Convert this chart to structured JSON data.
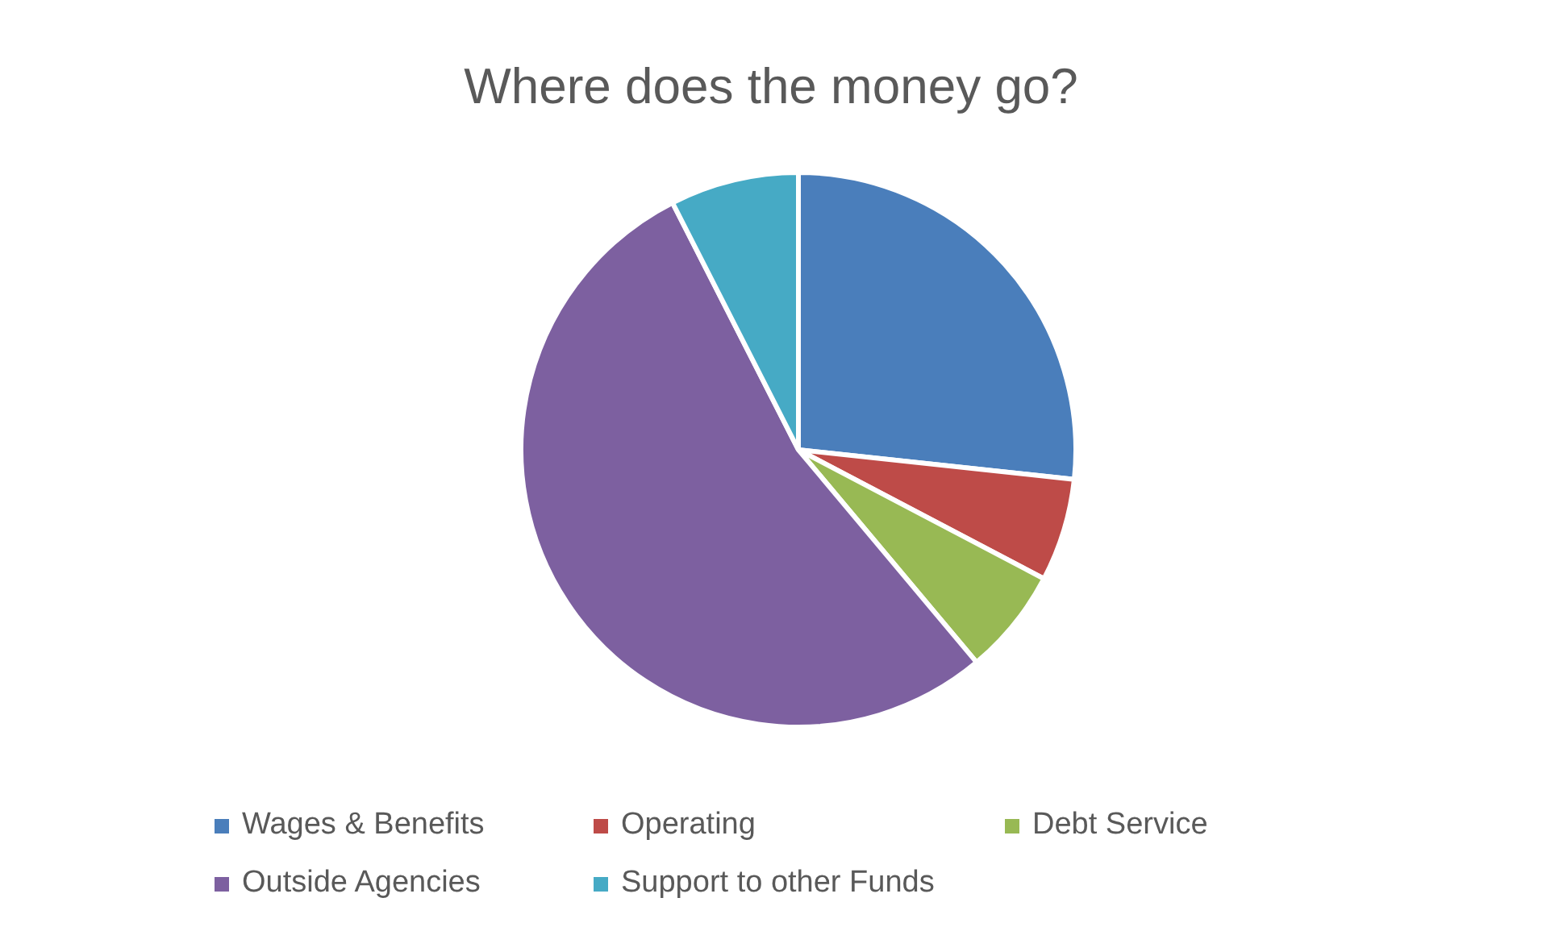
{
  "chart_data": {
    "type": "pie",
    "title": "Where does the money go?",
    "categories": [
      "Wages & Benefits",
      "Operating",
      "Debt Service",
      "Outside Agencies",
      "Support to other Funds"
    ],
    "values": [
      26.7,
      6.0,
      6.2,
      53.6,
      7.5
    ],
    "colors": [
      "#4a7ebb",
      "#be4b48",
      "#98b954",
      "#7d60a0",
      "#46aac5"
    ],
    "legend": "bottom"
  }
}
